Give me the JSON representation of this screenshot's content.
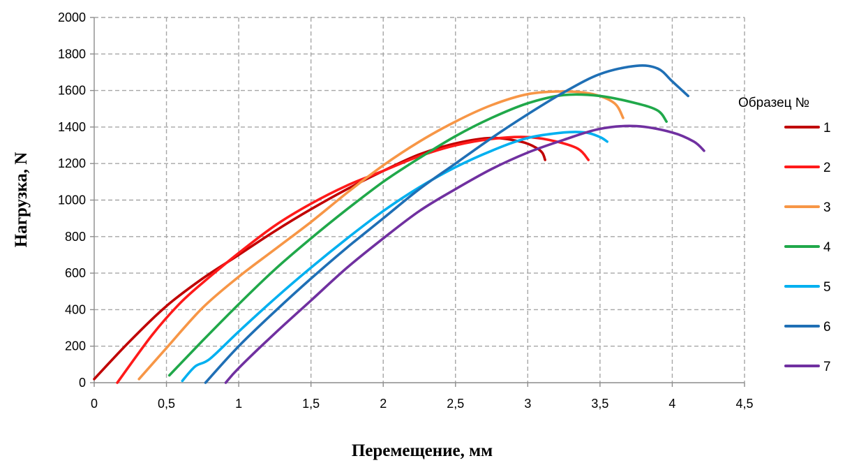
{
  "chart_data": {
    "type": "line",
    "title": "",
    "xlabel": "Перемещение, мм",
    "ylabel": "Нагрузка, N",
    "xlim": [
      0,
      4.5
    ],
    "ylim": [
      0,
      2000
    ],
    "x_ticks": [
      "0",
      "0,5",
      "1",
      "1,5",
      "2",
      "2,5",
      "3",
      "3,5",
      "4",
      "4,5"
    ],
    "y_ticks": [
      "0",
      "200",
      "400",
      "600",
      "800",
      "1000",
      "1200",
      "1400",
      "1600",
      "1800",
      "2000"
    ],
    "grid": true,
    "legend_title": "Образец №",
    "legend_position": "right",
    "series": [
      {
        "name": "1",
        "color": "#c00000",
        "x": [
          0,
          0.25,
          0.5,
          0.75,
          1.0,
          1.25,
          1.5,
          1.75,
          2.0,
          2.25,
          2.5,
          2.75,
          2.95,
          3.05,
          3.1,
          3.12
        ],
        "y": [
          20,
          230,
          420,
          570,
          700,
          830,
          950,
          1060,
          1160,
          1250,
          1310,
          1340,
          1320,
          1290,
          1260,
          1220
        ]
      },
      {
        "name": "2",
        "color": "#ff1a1a",
        "x": [
          0.16,
          0.4,
          0.6,
          0.8,
          1.0,
          1.25,
          1.5,
          1.75,
          2.0,
          2.25,
          2.5,
          2.75,
          3.0,
          3.2,
          3.35,
          3.42
        ],
        "y": [
          0,
          260,
          440,
          580,
          710,
          860,
          980,
          1080,
          1160,
          1240,
          1300,
          1335,
          1345,
          1320,
          1280,
          1220
        ]
      },
      {
        "name": "3",
        "color": "#f79646",
        "x": [
          0.31,
          0.5,
          0.75,
          1.0,
          1.25,
          1.5,
          1.75,
          2.0,
          2.25,
          2.5,
          2.75,
          3.0,
          3.25,
          3.45,
          3.6,
          3.66
        ],
        "y": [
          20,
          190,
          410,
          580,
          730,
          880,
          1040,
          1190,
          1320,
          1430,
          1520,
          1580,
          1595,
          1580,
          1530,
          1450
        ]
      },
      {
        "name": "4",
        "color": "#20a84a",
        "x": [
          0.52,
          0.75,
          1.0,
          1.25,
          1.5,
          1.75,
          2.0,
          2.25,
          2.5,
          2.75,
          3.0,
          3.25,
          3.5,
          3.75,
          3.9,
          3.96
        ],
        "y": [
          40,
          230,
          430,
          620,
          790,
          950,
          1100,
          1230,
          1350,
          1450,
          1530,
          1575,
          1570,
          1530,
          1490,
          1430
        ]
      },
      {
        "name": "5",
        "color": "#00b0f0",
        "x": [
          0.61,
          0.7,
          0.8,
          1.0,
          1.25,
          1.5,
          1.75,
          2.0,
          2.25,
          2.5,
          2.75,
          3.0,
          3.25,
          3.4,
          3.5,
          3.55
        ],
        "y": [
          10,
          90,
          130,
          280,
          460,
          630,
          790,
          940,
          1070,
          1180,
          1270,
          1340,
          1370,
          1370,
          1345,
          1320
        ]
      },
      {
        "name": "6",
        "color": "#1f6fb5",
        "x": [
          0.77,
          1.0,
          1.25,
          1.5,
          1.75,
          2.0,
          2.25,
          2.5,
          2.75,
          3.0,
          3.25,
          3.5,
          3.75,
          3.9,
          4.0,
          4.11
        ],
        "y": [
          0,
          200,
          390,
          570,
          740,
          900,
          1060,
          1200,
          1340,
          1470,
          1590,
          1690,
          1735,
          1720,
          1650,
          1570
        ]
      },
      {
        "name": "7",
        "color": "#7030a0",
        "x": [
          0.91,
          1.0,
          1.25,
          1.5,
          1.75,
          2.0,
          2.25,
          2.5,
          2.75,
          3.0,
          3.25,
          3.5,
          3.75,
          4.0,
          4.15,
          4.22
        ],
        "y": [
          0,
          80,
          270,
          450,
          630,
          790,
          940,
          1060,
          1170,
          1260,
          1330,
          1390,
          1405,
          1370,
          1320,
          1270
        ]
      }
    ]
  }
}
